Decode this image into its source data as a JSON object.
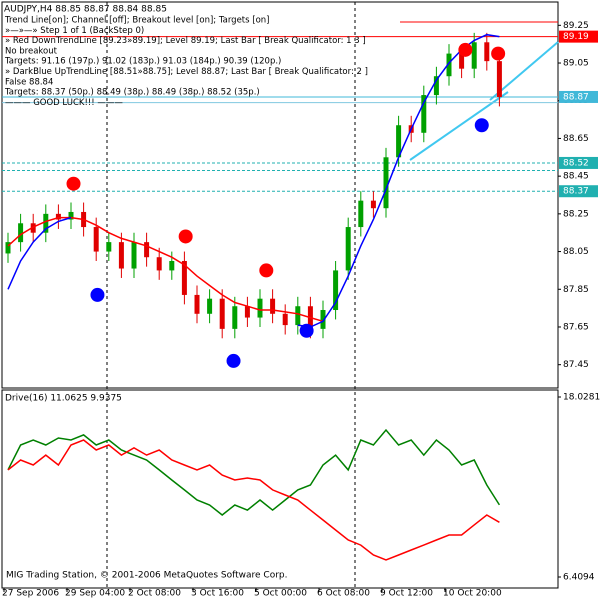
{
  "chart_data": [
    {
      "type": "candlestick",
      "title": "AUDJPY,H4  88.85 88.87 88.84 88.85",
      "annotations": [
        "Trend Line[on]; Channel [off]; Breakout level [on]; Targets [on]",
        "»—»—» Step 1 of 1 (BackStep 0)",
        "» Red DownTrendLine [89.23»89.19]; Level 89.19; Last Bar [ Break Qualificator: 1 3 ]",
        "No breakout",
        "Targets: 91.16 (197p.) 91.02 (183p.) 91.03 (184p.) 90.39 (120p.)",
        "» DarkBlue UpTrendLine [88.51»88.75]; Level 88.87; Last Bar [ Break Qualificator: 2 ]",
        "False 88.84",
        "Targets: 88.37 (50p.) 88.49 (38p.) 88.49 (38p.) 88.52 (35p.)",
        "——— GOOD LUCK!!! ———"
      ],
      "categories": [
        "27 Sep 2006",
        null,
        null,
        null,
        null,
        "29 Sep 04:00",
        null,
        null,
        null,
        null,
        "2 Oct 08:00",
        null,
        null,
        null,
        null,
        "3 Oct 16:00",
        null,
        null,
        null,
        null,
        "5 Oct 00:00",
        null,
        null,
        null,
        null,
        "6 Oct 08:00",
        null,
        null,
        null,
        null,
        "9 Oct 12:00",
        null,
        null,
        null,
        null,
        "10 Oct 20:00",
        null,
        null,
        null,
        null
      ],
      "open": [
        88.04,
        88.1,
        88.2,
        88.15,
        88.25,
        88.22,
        88.26,
        88.18,
        88.05,
        88.1,
        87.96,
        88.1,
        88.02,
        87.95,
        88.0,
        87.82,
        87.72,
        87.8,
        87.64,
        87.76,
        87.7,
        87.8,
        87.72,
        87.66,
        87.76,
        87.64,
        87.74,
        87.95,
        88.18,
        88.32,
        88.28,
        88.55,
        88.72,
        88.68,
        88.88,
        88.98,
        89.1,
        89.02,
        89.16,
        89.06
      ],
      "high": [
        88.15,
        88.25,
        88.25,
        88.3,
        88.3,
        88.31,
        88.31,
        88.23,
        88.15,
        88.15,
        88.15,
        88.15,
        88.07,
        88.05,
        88.05,
        87.87,
        87.85,
        87.85,
        87.81,
        87.81,
        87.85,
        87.85,
        87.77,
        87.81,
        87.81,
        87.79,
        88.0,
        88.23,
        88.37,
        88.37,
        88.6,
        88.77,
        88.77,
        88.93,
        89.03,
        89.15,
        89.15,
        89.21,
        89.21,
        89.11
      ],
      "low": [
        87.99,
        88.05,
        88.1,
        88.1,
        88.17,
        88.17,
        88.13,
        88.0,
        88.0,
        87.91,
        87.91,
        87.97,
        87.9,
        87.9,
        87.77,
        87.67,
        87.67,
        87.59,
        87.59,
        87.65,
        87.65,
        87.67,
        87.61,
        87.61,
        87.59,
        87.59,
        87.69,
        87.9,
        88.13,
        88.23,
        88.23,
        88.5,
        88.63,
        88.63,
        88.83,
        88.93,
        88.97,
        88.97,
        89.01,
        88.82
      ],
      "close": [
        88.1,
        88.2,
        88.15,
        88.25,
        88.22,
        88.26,
        88.18,
        88.05,
        88.1,
        87.96,
        88.1,
        88.02,
        87.95,
        88.0,
        87.82,
        87.72,
        87.8,
        87.64,
        87.76,
        87.7,
        87.8,
        87.72,
        87.66,
        87.76,
        87.64,
        87.74,
        87.95,
        88.18,
        88.32,
        88.28,
        88.55,
        88.72,
        88.68,
        88.88,
        88.98,
        89.1,
        89.02,
        89.16,
        89.06,
        88.87
      ],
      "up_color": "#00a000",
      "down_color": "#e00000",
      "series": [
        {
          "color": "#ff0000",
          "values": [
            88.08,
            88.14,
            88.18,
            88.21,
            88.23,
            88.23,
            88.22,
            88.19,
            88.15,
            88.12,
            88.1,
            88.08,
            88.05,
            88.02,
            87.98,
            87.92,
            87.87,
            87.82,
            87.78,
            87.76,
            87.74,
            87.74,
            87.73,
            87.72,
            87.7,
            87.68,
            null,
            null,
            null,
            null,
            null,
            null,
            null,
            null,
            null,
            null,
            null,
            null,
            null,
            null
          ]
        },
        {
          "color": "#0000ff",
          "values": [
            87.85,
            88.0,
            88.1,
            88.17,
            88.21,
            88.23,
            null,
            null,
            null,
            null,
            null,
            null,
            null,
            null,
            null,
            null,
            null,
            null,
            null,
            null,
            null,
            null,
            null,
            87.66,
            87.65,
            87.68,
            87.78,
            87.92,
            88.08,
            88.22,
            88.38,
            88.55,
            88.7,
            88.84,
            88.96,
            89.05,
            89.12,
            89.17,
            89.2,
            89.19
          ]
        }
      ],
      "points": [
        {
          "color": "#ff0000",
          "x": [
            5.2,
            14.1,
            20.5,
            36.3,
            38.9
          ],
          "values": [
            88.41,
            88.13,
            87.95,
            89.12,
            89.1
          ]
        },
        {
          "color": "#0000ff",
          "x": [
            7.1,
            17.9,
            23.7,
            37.6
          ],
          "values": [
            87.82,
            87.47,
            87.63,
            88.72
          ]
        }
      ],
      "levels": [
        {
          "value": 89.19,
          "color": "#ff0000",
          "style": "solid",
          "label_box": true
        },
        {
          "value": 88.87,
          "color": "#40b8d8",
          "style": "solid",
          "label_box": true
        },
        {
          "value": 88.84,
          "color": "#80c8e0",
          "style": "solid",
          "label_box": false
        },
        {
          "value": 88.52,
          "color": "#20b0b0",
          "style": "dashed",
          "label_box": true
        },
        {
          "value": 88.48,
          "color": "#20b0b0",
          "style": "dashed",
          "label_box": false
        },
        {
          "value": 88.37,
          "color": "#20b0b0",
          "style": "dashed",
          "label_box": true
        }
      ],
      "ylim": [
        87.39,
        89.31
      ],
      "yticks": [
        89.25,
        89.05,
        88.85,
        88.65,
        88.45,
        88.25,
        88.05,
        87.85,
        87.65,
        87.45
      ]
    },
    {
      "type": "line",
      "title": "Drive(16) 11.0625 9.9375",
      "footer": "MIG Trading Station, © 2001-2006 MetaQuotes Software Corp.",
      "series": [
        {
          "color": "#008000",
          "values": [
            13.32,
            14.93,
            15.25,
            14.93,
            15.38,
            15.25,
            15.58,
            14.93,
            15.25,
            14.61,
            14.28,
            13.96,
            13.32,
            12.67,
            12.03,
            11.38,
            11.06,
            10.41,
            11.06,
            10.73,
            11.38,
            10.73,
            11.38,
            12.03,
            12.35,
            13.64,
            14.28,
            13.32,
            15.25,
            14.93,
            15.9,
            14.93,
            15.25,
            14.28,
            15.25,
            14.61,
            13.64,
            13.96,
            12.35,
            11.0625
          ]
        },
        {
          "color": "#ff0000",
          "values": [
            13.32,
            13.96,
            13.64,
            14.28,
            13.64,
            14.93,
            15.25,
            14.61,
            14.93,
            14.28,
            14.74,
            14.28,
            14.61,
            13.96,
            13.64,
            13.32,
            13.64,
            12.99,
            12.67,
            12.8,
            12.67,
            12.03,
            11.7,
            11.38,
            10.73,
            10.09,
            9.44,
            8.8,
            8.47,
            7.83,
            7.51,
            7.83,
            8.15,
            8.47,
            8.8,
            9.12,
            9.12,
            9.77,
            10.41,
            9.9375
          ]
        }
      ],
      "ylim": [
        6.4094,
        18.0281
      ],
      "yticks": [
        18.0281,
        6.4094
      ]
    }
  ]
}
